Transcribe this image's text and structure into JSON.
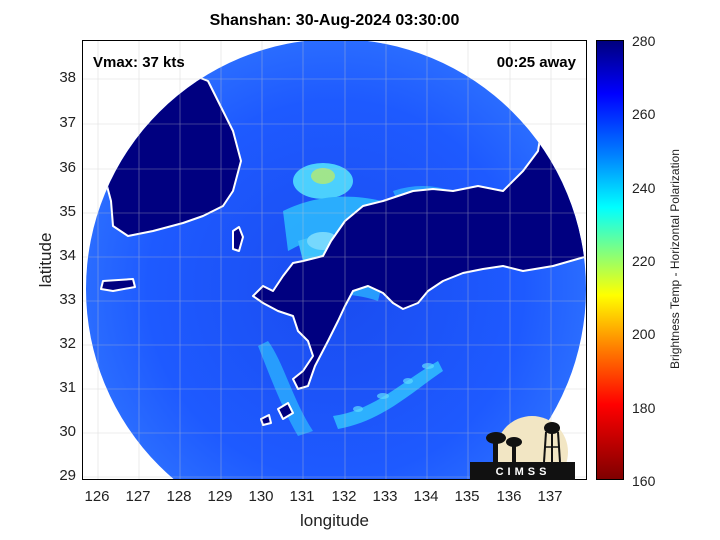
{
  "title": "Shanshan: 30-Aug-2024 03:30:00",
  "vmax_label": "Vmax: 37 kts",
  "time_away_label": "00:25 away",
  "xlabel": "longitude",
  "ylabel": "latitude",
  "colorbar_label": "Brightness Temp - Horizontal Polarization",
  "logo_text": "CIMSS",
  "x_ticks": [
    "126",
    "127",
    "128",
    "129",
    "130",
    "131",
    "132",
    "133",
    "134",
    "135",
    "136",
    "137"
  ],
  "y_ticks": [
    "38",
    "37",
    "36",
    "35",
    "34",
    "33",
    "32",
    "31",
    "30",
    "29"
  ],
  "colorbar_ticks": [
    "280",
    "260",
    "240",
    "220",
    "200",
    "180",
    "160"
  ],
  "colors": {
    "land": "#000080",
    "ocean": "#1e5aff",
    "cloud_band": "#00c8ff",
    "coastline": "#ffffff",
    "axes": "#000000"
  },
  "map": {
    "lon_range": [
      125.8,
      137.8
    ],
    "lat_range": [
      28.9,
      38.9
    ],
    "colorbar_range": [
      160,
      280
    ],
    "grid": true,
    "projection_shape": "circular swath"
  }
}
